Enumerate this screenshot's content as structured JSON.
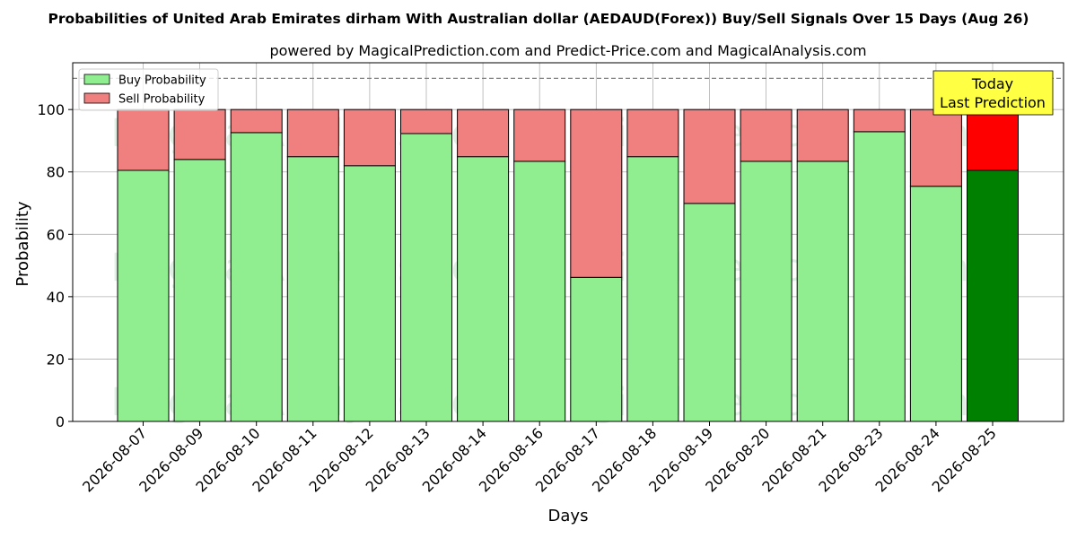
{
  "chart_data": {
    "type": "bar",
    "stacked": true,
    "title": "Probabilities of United Arab Emirates dirham With Australian dollar (AEDAUD(Forex)) Buy/Sell Signals Over 15 Days (Aug 26)",
    "subtitle": "powered by MagicalPrediction.com and Predict-Price.com and MagicalAnalysis.com",
    "xlabel": "Days",
    "ylabel": "Probability",
    "ylim": [
      0,
      115
    ],
    "yticks": [
      0,
      20,
      40,
      60,
      80,
      100
    ],
    "reference_line": 110,
    "grid": true,
    "legend_position": "top-left",
    "categories": [
      "2026-08-07",
      "2026-08-09",
      "2026-08-10",
      "2026-08-11",
      "2026-08-12",
      "2026-08-13",
      "2026-08-14",
      "2026-08-16",
      "2026-08-17",
      "2026-08-18",
      "2026-08-19",
      "2026-08-20",
      "2026-08-21",
      "2026-08-23",
      "2026-08-24",
      "2026-08-25"
    ],
    "series": [
      {
        "name": "Buy Probability",
        "color": "#90ee90",
        "highlight_color": "#008000",
        "values": [
          80.5,
          84,
          92.6,
          84.9,
          82,
          92.3,
          84.9,
          83.4,
          46.2,
          84.9,
          69.9,
          83.4,
          83.4,
          92.9,
          75.4,
          80.5
        ]
      },
      {
        "name": "Sell Probability",
        "color": "#f08080",
        "highlight_color": "#ff0000",
        "values": [
          19.5,
          16,
          7.4,
          15.1,
          18,
          7.7,
          15.1,
          16.6,
          53.8,
          15.1,
          30.1,
          16.6,
          16.6,
          7.1,
          24.6,
          19.5
        ]
      }
    ],
    "highlight_index": 15,
    "annotation": {
      "line1": "Today",
      "line2": "Last Prediction",
      "color": "#ffff44"
    },
    "watermarks": [
      "MagicalAnalysis.com",
      "MagicalPrediction.com"
    ]
  }
}
